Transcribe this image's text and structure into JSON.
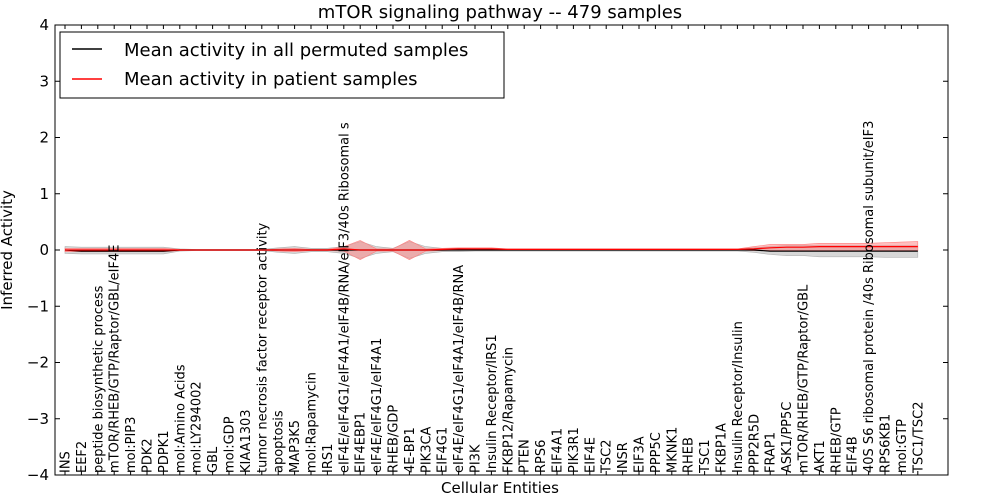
{
  "chart_data": {
    "type": "line",
    "title": "mTOR signaling pathway -- 479 samples",
    "xlabel": "Cellular Entities",
    "ylabel": "Inferred Activity",
    "ylim": [
      -4,
      4
    ],
    "yticks": [
      4,
      3,
      2,
      1,
      0,
      -1,
      -2,
      -3,
      -4
    ],
    "ytick_labels": [
      "4",
      "3",
      "2",
      "1",
      "0",
      "−1",
      "−2",
      "−3",
      "−4"
    ],
    "grid": false,
    "legend_location": "top-left",
    "colors": {
      "permuted": "#000000",
      "patient": "#ff0000",
      "patient_band": "#ff8080",
      "permuted_band": "#b0b0b0"
    },
    "categories": [
      "INS",
      "EEF2",
      "peptide biosynthetic process",
      "mTOR/RHEB/GTP/Raptor/GBL/eIF4E",
      "mol:PIP3",
      "PDK2",
      "PDPK1",
      "mol:Amino Acids",
      "mol:LY294002",
      "GBL",
      "mol:GDP",
      "KIAA1303",
      "tumor necrosis factor receptor activity",
      "apoptosis",
      "MAP3K5",
      "mol:Rapamycin",
      "IRS1",
      "eIF4E/eIF4G1/eIF4A1/eIF4B/RNA/eIF3/40s Ribosomal s",
      "EIF4EBP1",
      "eIF4E/eIF4G1/eIF4A1",
      "RHEB/GDP",
      "4E-BP1",
      "PIK3CA",
      "EIF4G1",
      "eIF4E/eIF4G1/eIF4A1/eIF4B/RNA",
      "PI3K",
      "Insulin Receptor/IRS1",
      "FKBP12/Rapamycin",
      "PTEN",
      "RPS6",
      "EIF4A1",
      "PIK3R1",
      "EIF4E",
      "TSC2",
      "INSR",
      "EIF3A",
      "PPP5C",
      "MKNK1",
      "RHEB",
      "TSC1",
      "FKBP1A",
      "Insulin Receptor/Insulin",
      "PPP2R5D",
      "FRAP1",
      "ASK1/PP5C",
      "mTOR/RHEB/GTP/Raptor/GBL",
      "AKT1",
      "RHEB/GTP",
      "EIF4B",
      "40S S6 ribosomal protein /40s Ribosomal subunit/eIF3",
      "RPS6KB1",
      "mol:GTP",
      "TSC1/TSC2"
    ],
    "series": [
      {
        "name": "Mean activity in all permuted samples",
        "values": [
          0.0,
          -0.02,
          -0.02,
          -0.02,
          -0.02,
          -0.02,
          -0.02,
          0.0,
          0.0,
          0.0,
          0.0,
          0.0,
          0.0,
          0.0,
          0.0,
          0.0,
          0.0,
          0.0,
          0.0,
          0.0,
          0.0,
          0.0,
          0.0,
          0.0,
          0.0,
          0.0,
          0.0,
          0.0,
          0.0,
          0.0,
          0.0,
          0.0,
          0.0,
          0.0,
          0.0,
          0.0,
          0.0,
          0.0,
          0.0,
          0.0,
          0.0,
          0.0,
          0.0,
          -0.02,
          -0.02,
          -0.02,
          -0.02,
          -0.02,
          -0.02,
          -0.02,
          -0.02,
          -0.02,
          -0.02
        ],
        "lower": [
          -0.06,
          -0.07,
          -0.07,
          -0.07,
          -0.07,
          -0.07,
          -0.07,
          -0.02,
          -0.01,
          -0.01,
          -0.01,
          -0.01,
          -0.01,
          -0.04,
          -0.06,
          -0.03,
          -0.03,
          -0.06,
          -0.15,
          -0.06,
          -0.03,
          -0.15,
          -0.06,
          -0.03,
          -0.03,
          -0.02,
          -0.02,
          -0.02,
          -0.02,
          -0.02,
          -0.02,
          -0.02,
          -0.02,
          -0.02,
          -0.02,
          -0.02,
          -0.02,
          -0.02,
          -0.02,
          -0.02,
          -0.02,
          -0.02,
          -0.04,
          -0.08,
          -0.1,
          -0.1,
          -0.12,
          -0.12,
          -0.12,
          -0.12,
          -0.13,
          -0.13,
          -0.13
        ],
        "upper": [
          0.06,
          0.05,
          0.05,
          0.05,
          0.05,
          0.05,
          0.05,
          0.02,
          0.01,
          0.01,
          0.01,
          0.01,
          0.01,
          0.04,
          0.06,
          0.03,
          0.03,
          0.06,
          0.15,
          0.06,
          0.03,
          0.15,
          0.06,
          0.03,
          0.03,
          0.02,
          0.02,
          0.02,
          0.02,
          0.02,
          0.02,
          0.02,
          0.02,
          0.02,
          0.02,
          0.02,
          0.02,
          0.02,
          0.02,
          0.02,
          0.02,
          0.02,
          0.04,
          0.06,
          0.08,
          0.08,
          0.08,
          0.08,
          0.08,
          0.08,
          0.08,
          0.08,
          0.08
        ]
      },
      {
        "name": "Mean activity in patient samples",
        "values": [
          0.0,
          0.0,
          0.0,
          0.0,
          0.0,
          0.0,
          0.0,
          0.0,
          0.0,
          0.0,
          0.0,
          0.0,
          0.0,
          0.0,
          0.0,
          0.0,
          0.0,
          0.02,
          0.0,
          0.0,
          0.0,
          0.0,
          0.0,
          0.01,
          0.02,
          0.02,
          0.02,
          0.01,
          0.01,
          0.01,
          0.01,
          0.01,
          0.01,
          0.01,
          0.01,
          0.01,
          0.01,
          0.01,
          0.01,
          0.01,
          0.01,
          0.01,
          0.02,
          0.04,
          0.05,
          0.05,
          0.06,
          0.06,
          0.06,
          0.06,
          0.06,
          0.06,
          0.06
        ],
        "lower": [
          -0.03,
          -0.03,
          -0.03,
          -0.03,
          -0.03,
          -0.03,
          -0.03,
          -0.01,
          0.0,
          0.0,
          0.0,
          0.0,
          0.0,
          -0.02,
          -0.03,
          -0.01,
          -0.01,
          -0.02,
          -0.17,
          -0.02,
          -0.02,
          -0.17,
          -0.02,
          -0.01,
          0.0,
          0.0,
          0.0,
          0.0,
          0.0,
          0.0,
          0.0,
          0.0,
          0.0,
          0.0,
          0.0,
          0.0,
          0.0,
          0.0,
          0.0,
          0.0,
          0.0,
          0.0,
          -0.01,
          -0.01,
          -0.01,
          -0.01,
          -0.01,
          -0.01,
          -0.01,
          -0.01,
          -0.01,
          -0.01,
          -0.01
        ],
        "upper": [
          0.03,
          0.03,
          0.03,
          0.03,
          0.03,
          0.03,
          0.03,
          0.01,
          0.0,
          0.0,
          0.0,
          0.0,
          0.0,
          0.02,
          0.03,
          0.01,
          0.01,
          0.06,
          0.17,
          0.02,
          0.02,
          0.17,
          0.02,
          0.03,
          0.04,
          0.04,
          0.04,
          0.02,
          0.02,
          0.02,
          0.02,
          0.02,
          0.02,
          0.02,
          0.02,
          0.02,
          0.02,
          0.02,
          0.02,
          0.02,
          0.02,
          0.02,
          0.06,
          0.1,
          0.1,
          0.1,
          0.12,
          0.12,
          0.12,
          0.12,
          0.13,
          0.14,
          0.15
        ]
      }
    ]
  }
}
